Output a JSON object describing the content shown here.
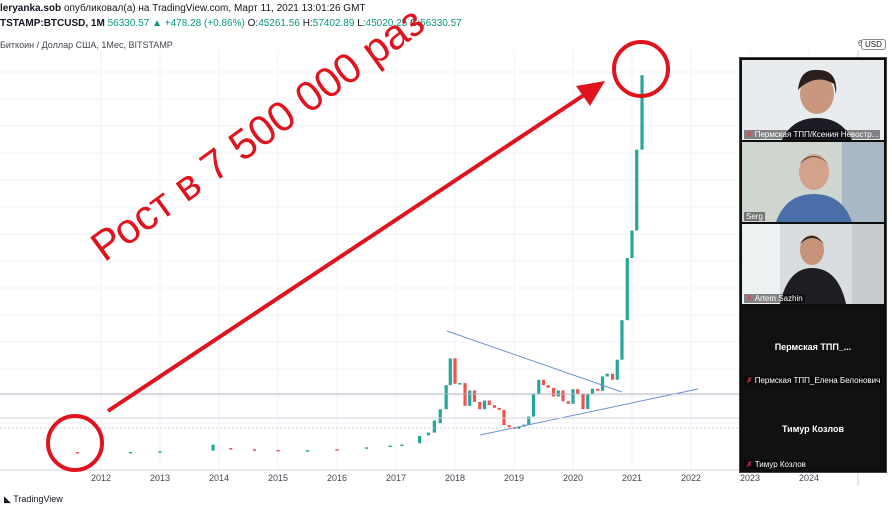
{
  "header": {
    "publisher": "leryanka.sob",
    "published_text": "опубликовал(а) на TradingView.com, Март 11, 2021 13:01:26 GMT",
    "symbol": "TSTAMP:BTCUSD, 1M",
    "last": "56330.57",
    "change": "+478.28 (+0.86%)",
    "open_label": "O:",
    "open": "45261.56",
    "high_label": "H:",
    "high": "57402.89",
    "low_label": "L:",
    "low": "45020.25",
    "close_label": "C:",
    "close": "56330.57",
    "chart_title": "Биткоин / Доллар США, 1Мес, BITSTAMP"
  },
  "overlay": {
    "text": "Рост в 7 500 000 раз",
    "color": "#e0141e"
  },
  "price_axis": {
    "currency": "USD",
    "top_tick": "6"
  },
  "logo": "TradingView",
  "chart_data": {
    "type": "candlestick",
    "x_ticks": [
      "2012",
      "2013",
      "2014",
      "2015",
      "2016",
      "2017",
      "2018",
      "2019",
      "2020",
      "2021",
      "2022",
      "2023",
      "2024"
    ],
    "up_color": "#26a69a",
    "down_color": "#ef5350",
    "candles": [
      {
        "t": 2011.6,
        "o": 5,
        "c": 4
      },
      {
        "t": 2012.0,
        "o": 5,
        "c": 5
      },
      {
        "t": 2012.5,
        "o": 6,
        "c": 10
      },
      {
        "t": 2013.0,
        "o": 13,
        "c": 100
      },
      {
        "t": 2013.9,
        "o": 200,
        "c": 1100
      },
      {
        "t": 2014.2,
        "o": 600,
        "c": 450
      },
      {
        "t": 2014.6,
        "o": 400,
        "c": 300
      },
      {
        "t": 2015.0,
        "o": 320,
        "c": 230
      },
      {
        "t": 2015.5,
        "o": 250,
        "c": 260
      },
      {
        "t": 2016.0,
        "o": 430,
        "c": 400
      },
      {
        "t": 2016.5,
        "o": 650,
        "c": 700
      },
      {
        "t": 2016.9,
        "o": 750,
        "c": 960
      },
      {
        "t": 2017.1,
        "o": 1000,
        "c": 1100
      },
      {
        "t": 2017.4,
        "o": 1300,
        "c": 2400
      },
      {
        "t": 2017.55,
        "o": 2500,
        "c": 2900
      },
      {
        "t": 2017.65,
        "o": 2900,
        "c": 4700
      },
      {
        "t": 2017.75,
        "o": 4300,
        "c": 6400
      },
      {
        "t": 2017.85,
        "o": 6400,
        "c": 10000
      },
      {
        "t": 2017.92,
        "o": 10000,
        "c": 14000
      },
      {
        "t": 2018.0,
        "o": 14000,
        "c": 10200
      },
      {
        "t": 2018.08,
        "o": 10200,
        "c": 10300
      },
      {
        "t": 2018.17,
        "o": 10300,
        "c": 6900
      },
      {
        "t": 2018.25,
        "o": 6900,
        "c": 9200
      },
      {
        "t": 2018.33,
        "o": 9200,
        "c": 7500
      },
      {
        "t": 2018.42,
        "o": 7500,
        "c": 6400
      },
      {
        "t": 2018.5,
        "o": 6400,
        "c": 7700
      },
      {
        "t": 2018.58,
        "o": 7700,
        "c": 7000
      },
      {
        "t": 2018.67,
        "o": 7000,
        "c": 6600
      },
      {
        "t": 2018.75,
        "o": 6600,
        "c": 6300
      },
      {
        "t": 2018.83,
        "o": 6300,
        "c": 4000
      },
      {
        "t": 2018.92,
        "o": 4000,
        "c": 3700
      },
      {
        "t": 2019.0,
        "o": 3700,
        "c": 3450
      },
      {
        "t": 2019.08,
        "o": 3450,
        "c": 3800
      },
      {
        "t": 2019.17,
        "o": 3800,
        "c": 4100
      },
      {
        "t": 2019.25,
        "o": 4100,
        "c": 5300
      },
      {
        "t": 2019.33,
        "o": 5300,
        "c": 8600
      },
      {
        "t": 2019.42,
        "o": 8600,
        "c": 10800
      },
      {
        "t": 2019.5,
        "o": 10800,
        "c": 10000
      },
      {
        "t": 2019.58,
        "o": 10000,
        "c": 9600
      },
      {
        "t": 2019.67,
        "o": 9600,
        "c": 8300
      },
      {
        "t": 2019.75,
        "o": 8300,
        "c": 9200
      },
      {
        "t": 2019.83,
        "o": 9200,
        "c": 7600
      },
      {
        "t": 2019.92,
        "o": 7600,
        "c": 7200
      },
      {
        "t": 2020.0,
        "o": 7200,
        "c": 9400
      },
      {
        "t": 2020.08,
        "o": 9400,
        "c": 8600
      },
      {
        "t": 2020.17,
        "o": 8600,
        "c": 6400
      },
      {
        "t": 2020.25,
        "o": 6400,
        "c": 8600
      },
      {
        "t": 2020.33,
        "o": 8600,
        "c": 9450
      },
      {
        "t": 2020.42,
        "o": 9450,
        "c": 9150
      },
      {
        "t": 2020.5,
        "o": 9150,
        "c": 11300
      },
      {
        "t": 2020.58,
        "o": 11300,
        "c": 11700
      },
      {
        "t": 2020.67,
        "o": 11700,
        "c": 10800
      },
      {
        "t": 2020.75,
        "o": 10800,
        "c": 13800
      },
      {
        "t": 2020.83,
        "o": 13800,
        "c": 19700
      },
      {
        "t": 2020.92,
        "o": 19700,
        "c": 29000
      },
      {
        "t": 2021.0,
        "o": 29000,
        "c": 33100
      },
      {
        "t": 2021.08,
        "o": 33100,
        "c": 45200
      },
      {
        "t": 2021.17,
        "o": 45200,
        "c": 56330
      }
    ]
  },
  "participants": [
    {
      "name": "Пермская ТПП/Ксения Невостр...",
      "muted": true,
      "video": true
    },
    {
      "name": "Serg",
      "muted": false,
      "video": true
    },
    {
      "name": "Artem Sazhin",
      "muted": true,
      "video": true
    },
    {
      "name": "Пермская ТПП_Елена Белонович",
      "display": "Пермская ТПП_...",
      "muted": true,
      "video": false
    },
    {
      "name": "Тимур Козлов",
      "display": "Тимур Козлов",
      "muted": true,
      "video": false
    }
  ]
}
